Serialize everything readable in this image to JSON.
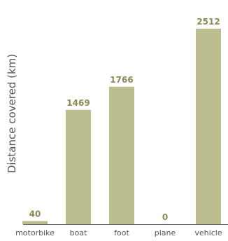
{
  "colors": {
    "bar": "#bbbd8e",
    "axis": "#666666",
    "label": "#8a8a55",
    "text": "#555555"
  },
  "chart_data": {
    "type": "bar",
    "categories": [
      "motorbike",
      "boat",
      "foot",
      "plane",
      "vehicle"
    ],
    "values": [
      40,
      1469,
      1766,
      0,
      2512
    ],
    "ylabel": "Distance covered (km)",
    "xlabel": "",
    "ylim": [
      0,
      2700
    ],
    "grid": false,
    "legend": "none"
  }
}
